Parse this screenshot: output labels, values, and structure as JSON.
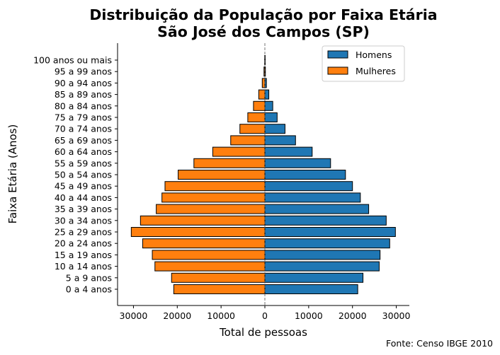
{
  "chart_data": {
    "type": "bar",
    "orientation": "horizontal",
    "title": "Distribuição da População por Faixa Etária",
    "subtitle": "São José dos Campos (SP)",
    "xlabel": "Total de pessoas",
    "ylabel": "Faixa Etária (Anos)",
    "source": "Fonte: Censo IBGE 2010",
    "xlim": [
      -33000,
      33000
    ],
    "xticks": [
      -30000,
      -20000,
      -10000,
      0,
      10000,
      20000,
      30000
    ],
    "xtick_labels": [
      "30000",
      "20000",
      "10000",
      "0",
      "10000",
      "20000",
      "30000"
    ],
    "grid": false,
    "legend_position": "top-right",
    "categories": [
      "0 a 4 anos",
      "5 a 9 anos",
      "10 a 14 anos",
      "15 a 19 anos",
      "20 a 24 anos",
      "25 a 29 anos",
      "30 a 34 anos",
      "35 a 39 anos",
      "40 a 44 anos",
      "45 a 49 anos",
      "50 a 54 anos",
      "55 a 59 anos",
      "60 a 64 anos",
      "65 a 69 anos",
      "70 a 74 anos",
      "75 a 79 anos",
      "80 a 84 anos",
      "85 a 89 anos",
      "90 a 94 anos",
      "95 a 99 anos",
      "100 anos ou mais"
    ],
    "series": [
      {
        "name": "Homens",
        "color": "#1f77b4",
        "values": [
          21200,
          22400,
          26100,
          26300,
          28500,
          29800,
          27700,
          23700,
          21800,
          20000,
          18400,
          15000,
          10800,
          7000,
          4600,
          2800,
          1800,
          900,
          350,
          120,
          20
        ]
      },
      {
        "name": "Mulheres",
        "color": "#ff7f0e",
        "values": [
          20800,
          21300,
          25100,
          25700,
          27900,
          30500,
          28400,
          24800,
          23500,
          22800,
          19800,
          16200,
          11900,
          7800,
          5700,
          3900,
          2600,
          1400,
          600,
          200,
          40
        ]
      }
    ]
  }
}
